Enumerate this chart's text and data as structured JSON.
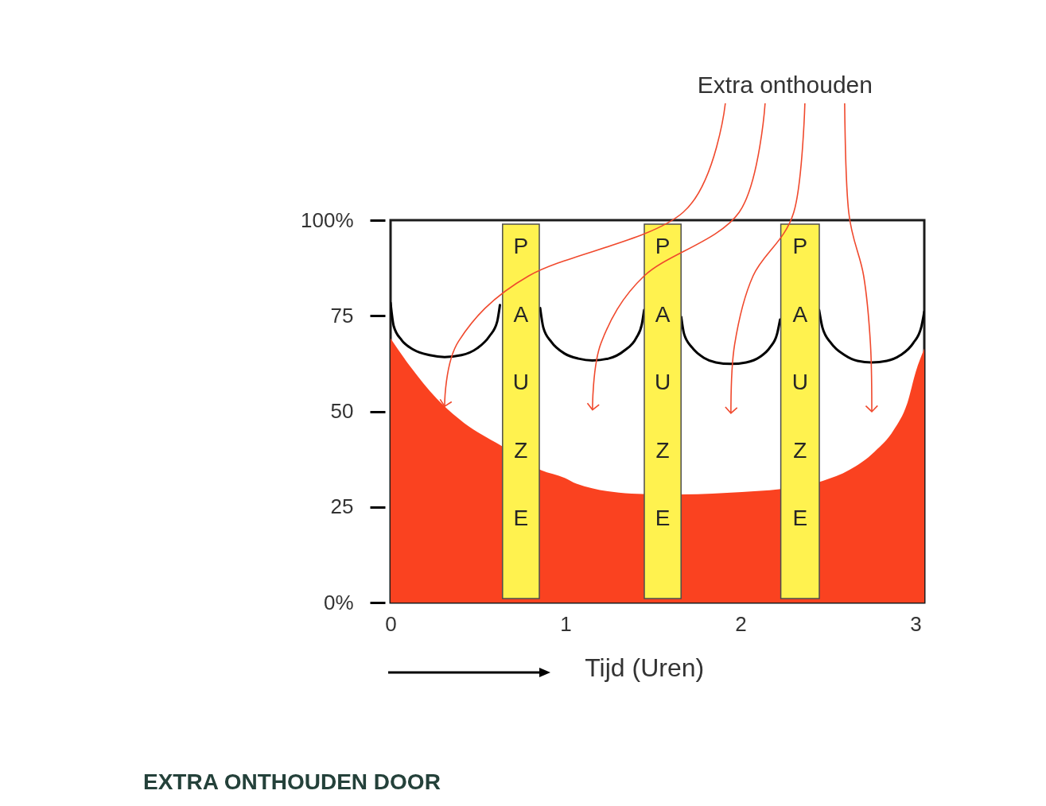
{
  "chart_data": {
    "type": "area",
    "title": "EXTRA ONTHOUDEN DOOR",
    "xlabel": "Tijd (Uren)",
    "annotations": [
      "Extra onthouden"
    ],
    "xlim": [
      0,
      3.05
    ],
    "xticks": [
      0,
      1,
      2,
      3
    ],
    "ylim": [
      0,
      100
    ],
    "yticks": [
      {
        "value": 0,
        "label": "0%"
      },
      25,
      50,
      75,
      {
        "value": 100,
        "label": "100%"
      }
    ],
    "grid": false,
    "series": [
      {
        "color": "#fa4220",
        "x": [
          0,
          0.108,
          0.265,
          0.422,
          0.625,
          0.86,
          0.995,
          1.062,
          1.377,
          1.44,
          1.67,
          2.008,
          2.22,
          2.47,
          2.623,
          2.765,
          2.875,
          2.954,
          3.001,
          3.05
        ],
        "values": [
          69.1,
          62,
          53.3,
          46.9,
          41.2,
          34.6,
          32.6,
          31.1,
          28.5,
          28.4,
          28.3,
          28.9,
          29.6,
          31.8,
          34.7,
          39.4,
          45.1,
          52.3,
          60.3,
          66.4
        ]
      },
      {
        "type": "line",
        "color": "#000000",
        "x": [
          0,
          0.018,
          0.064,
          0.132,
          0.223,
          0.309,
          0.405,
          0.495,
          0.564,
          0.609,
          0.625
        ],
        "values": [
          78.4,
          72.3,
          68.6,
          66.1,
          64.7,
          64.2,
          64.7,
          66.5,
          69.6,
          73.4,
          77.8
        ]
      },
      {
        "type": "line",
        "color": "#000000",
        "x": [
          0.855,
          0.873,
          0.918,
          0.995,
          1.073,
          1.154,
          1.245,
          1.336,
          1.404,
          1.436,
          1.449
        ],
        "values": [
          77,
          71.9,
          68.2,
          65.1,
          63.8,
          63.3,
          63.8,
          65.9,
          69.2,
          72.8,
          76.5
        ]
      },
      {
        "type": "line",
        "color": "#000000",
        "x": [
          1.661,
          1.677,
          1.723,
          1.791,
          1.859,
          1.945,
          2.032,
          2.109,
          2.168,
          2.209,
          2.226
        ],
        "values": [
          74.7,
          70.3,
          66.7,
          64,
          62.8,
          62.4,
          62.8,
          64.2,
          66.7,
          70.3,
          74
        ]
      },
      {
        "type": "line",
        "color": "#000000",
        "x": [
          2.449,
          2.468,
          2.518,
          2.595,
          2.668,
          2.75,
          2.836,
          2.914,
          2.986,
          3.032,
          3.05
        ],
        "values": [
          76.5,
          71.9,
          67.8,
          64.7,
          63.2,
          62.8,
          63.2,
          64.7,
          67.8,
          71.9,
          76.1
        ]
      }
    ],
    "bands": [
      {
        "axis": "x",
        "from": 0.64,
        "to": 0.85,
        "label": "PAUZE",
        "color": "#fff24f"
      },
      {
        "axis": "x",
        "from": 1.45,
        "to": 1.66,
        "label": "PAUZE",
        "color": "#fff24f"
      },
      {
        "axis": "x",
        "from": 2.23,
        "to": 2.45,
        "label": "PAUZE",
        "color": "#fff24f"
      }
    ]
  }
}
